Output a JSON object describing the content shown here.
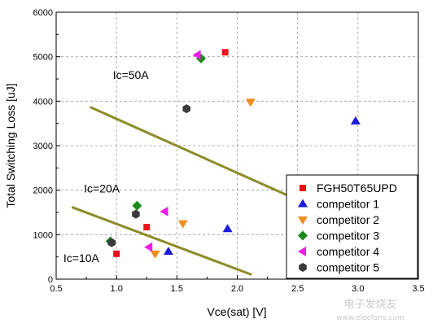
{
  "chart_data": {
    "type": "scatter",
    "title": "",
    "xlabel": "Vce(sat) [V]",
    "ylabel": "Total Switching Loss [uJ]",
    "xlim": [
      0.5,
      3.5
    ],
    "ylim": [
      0,
      6000
    ],
    "xticks": [
      "0.5",
      "1.0",
      "1.5",
      "2.0",
      "2.5",
      "3.0",
      "3.5"
    ],
    "yticks": [
      "0",
      "1000",
      "2000",
      "3000",
      "4000",
      "5000",
      "6000"
    ],
    "grid": true,
    "legend_position": "bottom-right",
    "series": [
      {
        "name": "FGH50T65UPD",
        "marker": "square",
        "color": "#e8141c",
        "points": [
          [
            1.0,
            570
          ],
          [
            1.25,
            1170
          ],
          [
            1.9,
            5100
          ]
        ]
      },
      {
        "name": "competitor 1",
        "marker": "triangle-up",
        "color": "#1a1ad8",
        "points": [
          [
            1.43,
            620
          ],
          [
            1.92,
            1130
          ],
          [
            2.98,
            3550
          ]
        ]
      },
      {
        "name": "competitor 2",
        "marker": "triangle-down",
        "color": "#f08c1e",
        "points": [
          [
            1.32,
            570
          ],
          [
            1.55,
            1250
          ],
          [
            2.11,
            3980
          ]
        ]
      },
      {
        "name": "competitor 3",
        "marker": "diamond",
        "color": "#1a8a1a",
        "points": [
          [
            0.95,
            850
          ],
          [
            1.17,
            1650
          ],
          [
            1.7,
            4960
          ]
        ]
      },
      {
        "name": "competitor 4",
        "marker": "triangle-left",
        "color": "#ee1cee",
        "points": [
          [
            1.27,
            720
          ],
          [
            1.4,
            1520
          ],
          [
            1.67,
            5040
          ]
        ]
      },
      {
        "name": "competitor 5",
        "marker": "hexagon",
        "color": "#3a3a3a",
        "points": [
          [
            0.96,
            820
          ],
          [
            1.16,
            1460
          ],
          [
            1.58,
            3830
          ]
        ]
      }
    ],
    "lines": [
      {
        "color": "#8c8c28",
        "points": [
          [
            0.78,
            3870
          ],
          [
            2.42,
            1880
          ]
        ]
      },
      {
        "color": "#8c8c28",
        "points": [
          [
            0.63,
            1620
          ],
          [
            2.12,
            100
          ]
        ]
      }
    ],
    "annotations": [
      {
        "text": "Ic=50A",
        "x": 0.97,
        "y": 4500
      },
      {
        "text": "Ic=20A",
        "x": 0.73,
        "y": 1950
      },
      {
        "text": "Ic=10A",
        "x": 0.56,
        "y": 380
      }
    ]
  },
  "watermark": {
    "text": "电子发烧友",
    "sub": "www.elecfans.com"
  }
}
